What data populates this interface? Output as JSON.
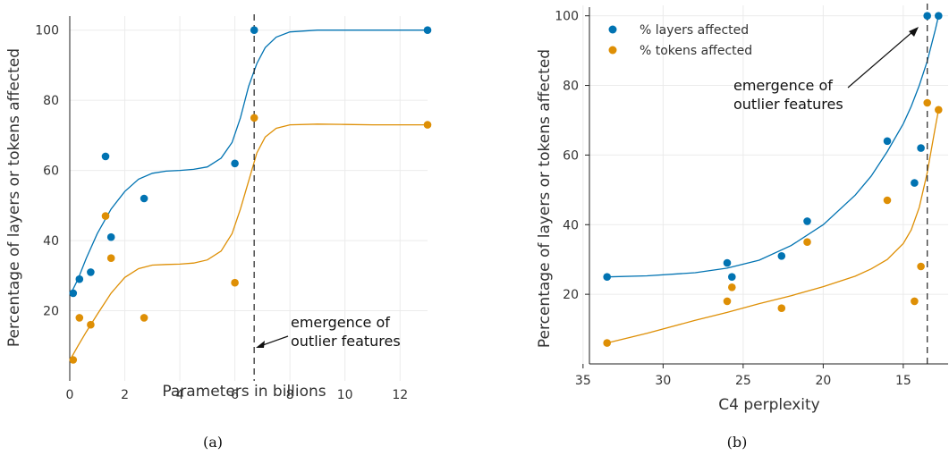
{
  "colors": {
    "layers": "#0173b2",
    "tokens": "#de8f05"
  },
  "chart_data": [
    {
      "type": "scatter",
      "panel": "a",
      "caption": "(a)",
      "xlabel": "Parameters in billions",
      "ylabel": "Percentage of layers or tokens affected",
      "xlim": [
        0,
        13
      ],
      "ylim": [
        0,
        104
      ],
      "xticks": [
        "0",
        "2",
        "4",
        "6",
        "8",
        "10",
        "12"
      ],
      "yticks": [
        "20",
        "40",
        "60",
        "80",
        "100"
      ],
      "annotation": {
        "text_line1": "emergence of",
        "text_line2": "outlier features",
        "x_line": 6.7
      },
      "series": [
        {
          "key": "layers",
          "x": [
            0.125,
            0.35,
            0.76,
            1.3,
            1.5,
            2.7,
            6.0,
            6.7,
            13.0
          ],
          "y": [
            25,
            29,
            31,
            64,
            41,
            52,
            62,
            100,
            100
          ],
          "curve_x": [
            0.05,
            0.3,
            0.6,
            1,
            1.5,
            2,
            2.5,
            3,
            3.5,
            4,
            4.5,
            5,
            5.5,
            5.9,
            6.2,
            6.5,
            6.8,
            7.1,
            7.5,
            8,
            9,
            10,
            11,
            12,
            13
          ],
          "curve_y": [
            25,
            29,
            35,
            42,
            49,
            54,
            57.5,
            59.2,
            59.8,
            60,
            60.3,
            61,
            63.5,
            68,
            75,
            84,
            90.5,
            95,
            98,
            99.5,
            100,
            100,
            100,
            100,
            100
          ]
        },
        {
          "key": "tokens",
          "x": [
            0.125,
            0.35,
            0.76,
            1.3,
            1.5,
            2.7,
            6.0,
            6.7,
            13.0
          ],
          "y": [
            6,
            18,
            16,
            47,
            35,
            18,
            28,
            75,
            73
          ],
          "curve_x": [
            0.05,
            0.3,
            0.6,
            1,
            1.5,
            2,
            2.5,
            3,
            3.5,
            4,
            4.5,
            5,
            5.5,
            5.9,
            6.2,
            6.5,
            6.8,
            7.1,
            7.5,
            8,
            9,
            10,
            11,
            12,
            13
          ],
          "curve_y": [
            6.5,
            10,
            14,
            19,
            25,
            29.5,
            32,
            33,
            33.2,
            33.3,
            33.6,
            34.5,
            37,
            42,
            49,
            57,
            65,
            69.5,
            72,
            73,
            73.2,
            73.1,
            73,
            73,
            73
          ]
        }
      ]
    },
    {
      "type": "scatter",
      "panel": "b",
      "caption": "(b)",
      "xlabel": "C4 perplexity",
      "ylabel": "Percentage of layers or tokens affected",
      "xlim": [
        34.6,
        12.2
      ],
      "x_reversed": true,
      "ylim": [
        0,
        103
      ],
      "xticks": [
        "35",
        "30",
        "25",
        "20",
        "15"
      ],
      "yticks": [
        "20",
        "40",
        "60",
        "80",
        "100"
      ],
      "annotation": {
        "text_line1": "emergence of",
        "text_line2": "outlier features",
        "x_line": 13.5
      },
      "legend": {
        "position": "top-left",
        "entries": [
          "% layers affected",
          "% tokens affected"
        ]
      },
      "series": [
        {
          "key": "layers",
          "name": "% layers affected",
          "x": [
            33.5,
            26.0,
            25.7,
            22.6,
            21.0,
            16.0,
            14.3,
            13.9,
            13.5,
            12.8
          ],
          "y": [
            25,
            29,
            25,
            31,
            41,
            64,
            52,
            62,
            100,
            100
          ],
          "curve_x": [
            33.5,
            31,
            28,
            26,
            24,
            22,
            20,
            18,
            17,
            16,
            15,
            14.5,
            14,
            13.5,
            13,
            12.8
          ],
          "curve_y": [
            25,
            25.3,
            26.2,
            27.5,
            29.8,
            34,
            40,
            48.5,
            54,
            61,
            69,
            74,
            80,
            87,
            96,
            100
          ]
        },
        {
          "key": "tokens",
          "name": "% tokens affected",
          "x": [
            33.5,
            26.0,
            25.7,
            22.6,
            21.0,
            16.0,
            14.3,
            13.9,
            13.5,
            12.8
          ],
          "y": [
            6,
            18,
            22,
            16,
            35,
            47,
            18,
            28,
            75,
            73
          ],
          "curve_x": [
            33.5,
            31,
            28,
            26,
            24,
            22,
            20,
            18,
            17,
            16,
            15,
            14.5,
            14,
            13.5,
            13,
            12.8
          ],
          "curve_y": [
            6,
            8.8,
            12.5,
            14.8,
            17.3,
            19.6,
            22.2,
            25.2,
            27.3,
            30,
            34.6,
            38.5,
            45,
            55,
            68,
            73
          ]
        }
      ]
    }
  ]
}
